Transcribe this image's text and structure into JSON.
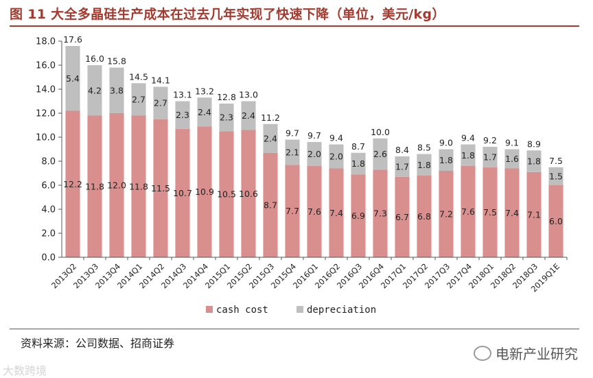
{
  "title": "图 11  大全多晶硅生产成本在过去几年实现了快速下降（单位，美元/kg）",
  "source": "资料来源：公司数据、招商证券",
  "watermark": "电新产业研究",
  "watermark2": "大数跨境",
  "colors": {
    "cash_cost": "#d88f8d",
    "depreciation": "#bfbfbf",
    "accent": "#a23a2f"
  },
  "chart_data": {
    "type": "bar",
    "stacked": true,
    "categories": [
      "2013Q2",
      "2013Q3",
      "2013Q4",
      "2014Q1",
      "2014Q2",
      "2014Q3",
      "2014Q4",
      "2015Q1",
      "2015Q2",
      "2015Q3",
      "2015Q4",
      "2016Q1",
      "2016Q2",
      "2016Q3",
      "2016Q4",
      "2017Q1",
      "2017Q2",
      "2017Q3",
      "2017Q4",
      "2018Q1",
      "2018Q2",
      "2018Q3",
      "2019Q1E"
    ],
    "series": [
      {
        "name": "cash cost",
        "values": [
          12.2,
          11.8,
          12.0,
          11.8,
          11.5,
          10.7,
          10.9,
          10.5,
          10.6,
          8.7,
          7.7,
          7.6,
          7.4,
          6.9,
          7.3,
          6.7,
          6.8,
          7.2,
          7.6,
          7.5,
          7.4,
          7.1,
          6.0
        ]
      },
      {
        "name": "depreciation",
        "values": [
          5.4,
          4.2,
          3.8,
          2.7,
          2.7,
          2.3,
          2.4,
          2.3,
          2.4,
          2.4,
          2.1,
          2.0,
          2.0,
          1.8,
          2.6,
          1.7,
          1.8,
          1.8,
          1.8,
          1.7,
          1.6,
          1.8,
          1.5
        ]
      }
    ],
    "labels": {
      "total": [
        "17.6",
        "16.0",
        "15.8",
        "14.5",
        "14.1",
        "13.1",
        "13.2",
        "12.8",
        "13.0",
        "11.2",
        "9.7",
        "9.7",
        "9.4",
        "8.7",
        "10.0",
        "8.4",
        "8.5",
        "9.0",
        "9.4",
        "9.2",
        "9.1",
        "8.9",
        "7.5"
      ],
      "cash_cost": [
        "12.2",
        "11.8",
        "12.0",
        "11.8",
        "11.5",
        "10.7",
        "10.9",
        "10.5",
        "10.6",
        "8.7",
        "7.7",
        "7.6",
        "7.4",
        "6.9",
        "7.3",
        "6.7",
        "6.8",
        "7.2",
        "7.6",
        "7.5",
        "7.4",
        "7.1",
        "6.0"
      ],
      "depreciation": [
        "5.4",
        "4.2",
        "3.8",
        "2.7",
        "2.7",
        "2.3",
        "2.4",
        "2.3",
        "2.4",
        "2.4",
        "2.1",
        "2.0",
        "2.0",
        "1.8",
        "2.6",
        "1.7",
        "1.8",
        "1.8",
        "1.8",
        "1.7",
        "1.6",
        "1.8",
        "1.5"
      ]
    },
    "yticks": [
      "0.0",
      "2.0",
      "4.0",
      "6.0",
      "8.0",
      "10.0",
      "12.0",
      "14.0",
      "16.0",
      "18.0"
    ],
    "ylim": [
      0,
      18
    ],
    "legend": [
      "cash cost",
      "depreciation"
    ],
    "legend_position": "bottom"
  }
}
